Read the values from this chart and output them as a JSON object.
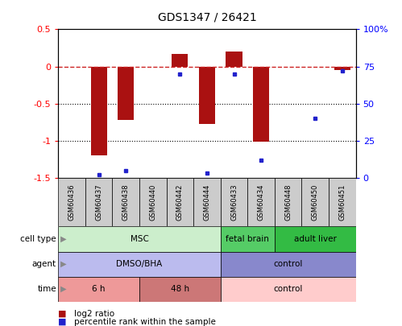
{
  "title": "GDS1347 / 26421",
  "samples": [
    "GSM60436",
    "GSM60437",
    "GSM60438",
    "GSM60440",
    "GSM60442",
    "GSM60444",
    "GSM60433",
    "GSM60434",
    "GSM60448",
    "GSM60450",
    "GSM60451"
  ],
  "log2_ratio": [
    0.0,
    -1.2,
    -0.72,
    0.0,
    0.17,
    -0.78,
    0.2,
    -1.02,
    0.0,
    0.0,
    -0.05
  ],
  "percentile_rank": [
    null,
    2,
    5,
    null,
    70,
    3,
    70,
    12,
    null,
    40,
    72
  ],
  "ylim_left": [
    -1.5,
    0.5
  ],
  "ylim_right": [
    0,
    100
  ],
  "bar_color": "#aa1111",
  "dot_color": "#2222cc",
  "dashed_color": "#cc2222",
  "dotted_color": "#000000",
  "sample_box_color": "#cccccc",
  "cell_type_groups": [
    {
      "label": "MSC",
      "start": 0,
      "end": 5,
      "color": "#cceecc"
    },
    {
      "label": "fetal brain",
      "start": 6,
      "end": 7,
      "color": "#55cc66"
    },
    {
      "label": "adult liver",
      "start": 8,
      "end": 10,
      "color": "#33bb44"
    }
  ],
  "agent_groups": [
    {
      "label": "DMSO/BHA",
      "start": 0,
      "end": 5,
      "color": "#bbbbee"
    },
    {
      "label": "control",
      "start": 6,
      "end": 10,
      "color": "#8888cc"
    }
  ],
  "time_groups": [
    {
      "label": "6 h",
      "start": 0,
      "end": 2,
      "color": "#ee9999"
    },
    {
      "label": "48 h",
      "start": 3,
      "end": 5,
      "color": "#cc7777"
    },
    {
      "label": "control",
      "start": 6,
      "end": 10,
      "color": "#ffcccc"
    }
  ],
  "row_labels": [
    "cell type",
    "agent",
    "time"
  ],
  "legend_items": [
    {
      "color": "#aa1111",
      "label": "log2 ratio"
    },
    {
      "color": "#2222cc",
      "label": "percentile rank within the sample"
    }
  ]
}
